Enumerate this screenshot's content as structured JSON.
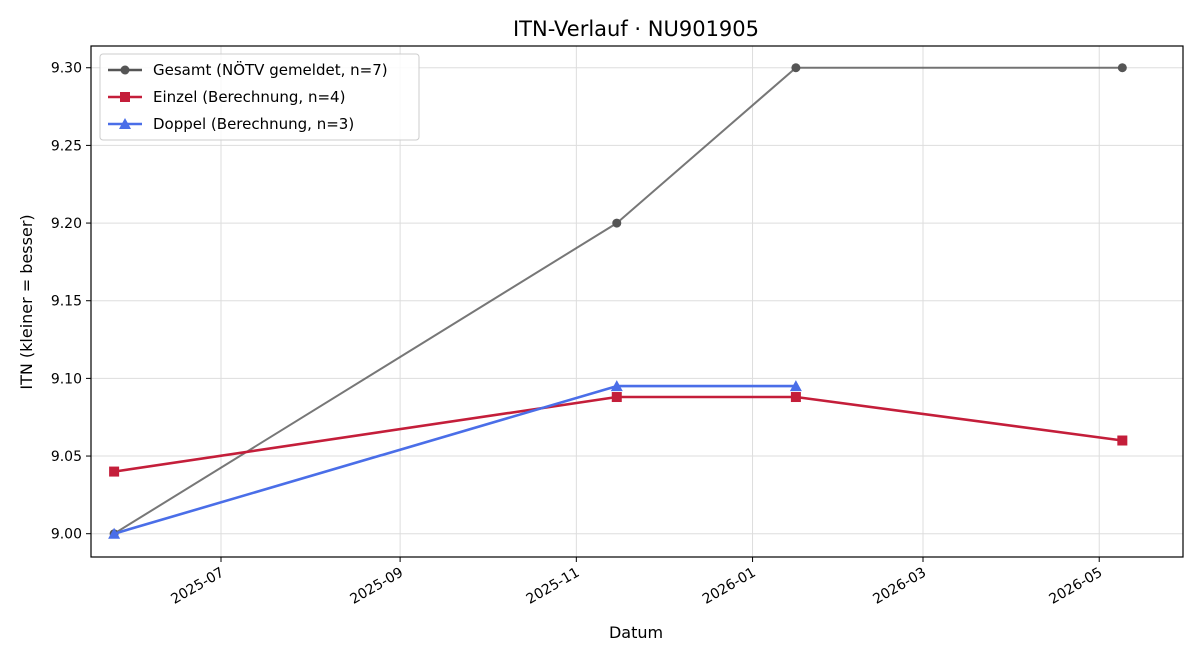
{
  "chart_data": {
    "type": "line",
    "title": "ITN-Verlauf · NU901905",
    "xlabel": "Datum",
    "ylabel": "ITN  (kleiner = besser)",
    "xlim": [
      "2025-05-17",
      "2026-05-30"
    ],
    "ylim": [
      8.985,
      9.314
    ],
    "x_ticks": [
      "2025-07",
      "2025-09",
      "2025-11",
      "2026-01",
      "2026-03",
      "2026-05"
    ],
    "y_ticks": [
      9.0,
      9.05,
      9.1,
      9.15,
      9.2,
      9.25,
      9.3
    ],
    "grid": true,
    "legend_position": "top-left",
    "series": [
      {
        "name": "Gesamt (NÖTV gemeldet, n=7)",
        "color": "#555555",
        "marker": "circle",
        "points": [
          {
            "x": "2025-05-25",
            "y": 9.0
          },
          {
            "x": "2025-11-15",
            "y": 9.2
          },
          {
            "x": "2026-01-16",
            "y": 9.3
          },
          {
            "x": "2026-05-09",
            "y": 9.3
          }
        ]
      },
      {
        "name": "Einzel (Berechnung, n=4)",
        "color": "#c41e3a",
        "marker": "square",
        "points": [
          {
            "x": "2025-05-25",
            "y": 9.04
          },
          {
            "x": "2025-11-15",
            "y": 9.088
          },
          {
            "x": "2026-01-16",
            "y": 9.088
          },
          {
            "x": "2026-05-09",
            "y": 9.06
          }
        ]
      },
      {
        "name": "Doppel (Berechnung, n=3)",
        "color": "#4a6ee8",
        "marker": "triangle",
        "points": [
          {
            "x": "2025-05-25",
            "y": 9.0
          },
          {
            "x": "2025-11-15",
            "y": 9.095
          },
          {
            "x": "2026-01-16",
            "y": 9.095
          }
        ]
      }
    ]
  }
}
